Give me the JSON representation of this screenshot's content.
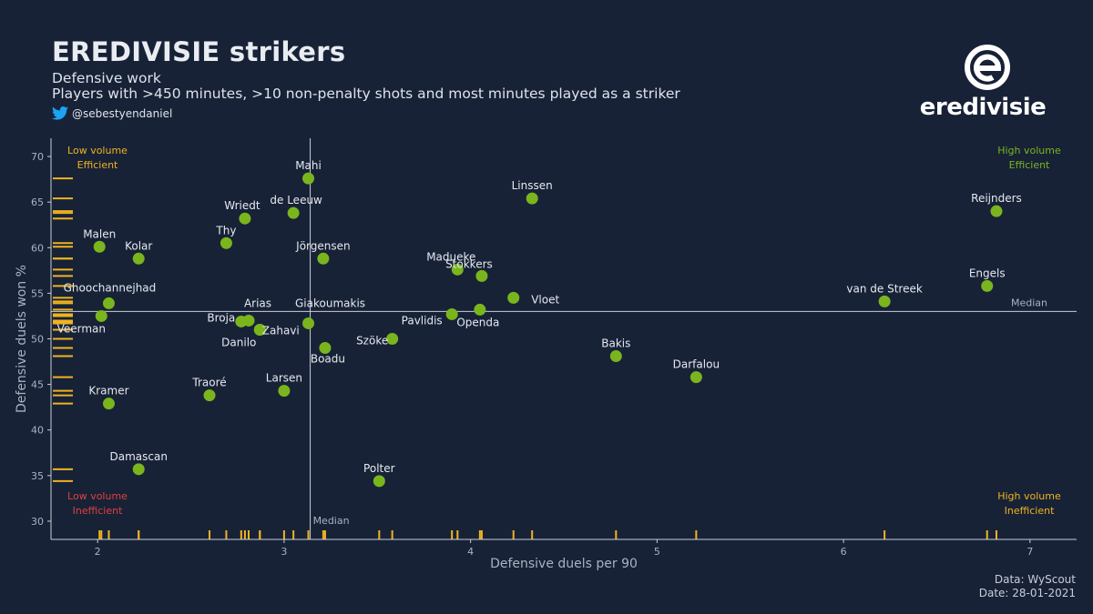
{
  "header": {
    "title": "EREDIVISIE strikers",
    "subtitle_line1": "Defensive work",
    "subtitle_line2": "Players with >450 minutes, >10 non-penalty shots and most minutes played as a striker",
    "handle": "@sebestyendaniel",
    "handle_icon": "twitter-bird-icon"
  },
  "logo": {
    "word": "eredivisie",
    "icon": "eredivisie-e-logo"
  },
  "footer": {
    "source": "Data: WyScout",
    "date": "Date: 28-01-2021"
  },
  "colors": {
    "background": "#172237",
    "point": "#7ab51d",
    "rug": "#f0b31f",
    "axis": "#c9ced8",
    "green_label": "#7ab51d",
    "yellow_label": "#f0b31f",
    "red_label": "#e0413b"
  },
  "chart_data": {
    "type": "scatter",
    "xlabel": "Defensive duels per 90",
    "ylabel": "Defensive duels won %",
    "xlim": [
      1.75,
      7.25
    ],
    "ylim": [
      28,
      72
    ],
    "x_ticks": [
      2,
      3,
      4,
      5,
      6,
      7
    ],
    "y_ticks": [
      30,
      35,
      40,
      45,
      50,
      55,
      60,
      65,
      70
    ],
    "median_x": 3.14,
    "median_y": 53,
    "median_x_label": "Median",
    "median_y_label": "Median",
    "quadrants": {
      "top_left": [
        "Low volume",
        "Efficient"
      ],
      "top_right": [
        "High volume",
        "Efficient"
      ],
      "bottom_left": [
        "Low volume",
        "Inefficient"
      ],
      "bottom_right": [
        "High volume",
        "Inefficient"
      ]
    },
    "grid": false,
    "rug_plots": true,
    "points": [
      {
        "name": "Mahi",
        "x": 3.13,
        "y": 67.6
      },
      {
        "name": "Linssen",
        "x": 4.33,
        "y": 65.4
      },
      {
        "name": "Reijnders",
        "x": 6.82,
        "y": 64.0
      },
      {
        "name": "de Leeuw",
        "x": 3.05,
        "y": 63.8
      },
      {
        "name": "Wriedt",
        "x": 2.79,
        "y": 63.2
      },
      {
        "name": "Thy",
        "x": 2.69,
        "y": 60.5
      },
      {
        "name": "Malen",
        "x": 2.01,
        "y": 60.1
      },
      {
        "name": "Kolar",
        "x": 2.22,
        "y": 58.8
      },
      {
        "name": "Jörgensen",
        "x": 3.21,
        "y": 58.8
      },
      {
        "name": "Madueke",
        "x": 3.93,
        "y": 57.6
      },
      {
        "name": "Stokkers",
        "x": 4.06,
        "y": 56.9
      },
      {
        "name": "Engels",
        "x": 6.77,
        "y": 55.8
      },
      {
        "name": "Vloet",
        "x": 4.23,
        "y": 54.5
      },
      {
        "name": "van de Streek",
        "x": 6.22,
        "y": 54.1
      },
      {
        "name": "Ghoochannejhad",
        "x": 2.06,
        "y": 53.9
      },
      {
        "name": "Openda",
        "x": 4.05,
        "y": 53.2
      },
      {
        "name": "Pavlidis",
        "x": 3.9,
        "y": 52.7
      },
      {
        "name": "Veerman",
        "x": 2.02,
        "y": 52.5
      },
      {
        "name": "Arias",
        "x": 2.81,
        "y": 52.0
      },
      {
        "name": "Broja",
        "x": 2.77,
        "y": 51.9
      },
      {
        "name": "Giakoumakis",
        "x": 3.13,
        "y": 51.7
      },
      {
        "name": "Zahavi",
        "x": 2.87,
        "y": 51.0
      },
      {
        "name": "Szöke",
        "x": 3.58,
        "y": 50.0
      },
      {
        "name": "Danilo",
        "x": 2.87,
        "y": 51.0
      },
      {
        "name": "Boadu",
        "x": 3.22,
        "y": 49.0
      },
      {
        "name": "Bakis",
        "x": 4.78,
        "y": 48.1
      },
      {
        "name": "Darfalou",
        "x": 5.21,
        "y": 45.8
      },
      {
        "name": "Larsen",
        "x": 3.0,
        "y": 44.3
      },
      {
        "name": "Traoré",
        "x": 2.6,
        "y": 43.8
      },
      {
        "name": "Kramer",
        "x": 2.06,
        "y": 42.9
      },
      {
        "name": "Damascan",
        "x": 2.22,
        "y": 35.7
      },
      {
        "name": "Polter",
        "x": 3.51,
        "y": 34.4
      }
    ]
  }
}
